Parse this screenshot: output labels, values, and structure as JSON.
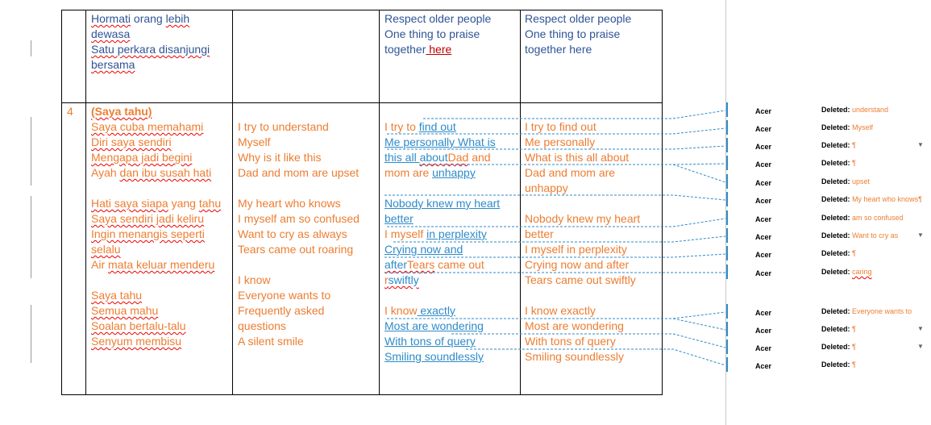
{
  "table": {
    "row1": {
      "col1": [],
      "col2": [
        [
          {
            "t": "Hormati",
            "k": "b sp"
          },
          {
            "t": " orang ",
            "k": "b"
          },
          {
            "t": "lebih",
            "k": "b sp"
          }
        ],
        [
          {
            "t": "dewasa",
            "k": "b sp"
          }
        ],
        [
          {
            "t": "Satu perkara disanjungi",
            "k": "b sp"
          }
        ],
        [
          {
            "t": "bersama",
            "k": "b sp"
          }
        ]
      ],
      "col3": [],
      "col4": [
        [
          {
            "t": "Respect older people",
            "k": "b"
          }
        ],
        [
          {
            "t": "One thing to praise",
            "k": "b"
          }
        ],
        [
          {
            "t": "together",
            "k": "b"
          },
          {
            "t": " here",
            "k": "insred"
          }
        ]
      ],
      "col5": [
        [
          {
            "t": "Respect older people",
            "k": "b"
          }
        ],
        [
          {
            "t": "One thing to praise",
            "k": "b"
          }
        ],
        [
          {
            "t": "together here",
            "k": "b"
          }
        ]
      ]
    },
    "row2": {
      "col1": [
        [
          {
            "t": "4",
            "k": "o"
          }
        ]
      ],
      "col2": [
        [
          {
            "t": "(Saya tahu)",
            "k": "o bold sp"
          }
        ],
        [
          {
            "t": "Saya cuba memahami",
            "k": "o sp"
          }
        ],
        [
          {
            "t": "Diri saya sendiri",
            "k": "o sp"
          }
        ],
        [
          {
            "t": "Mengapa jadi begini",
            "k": "o sp"
          }
        ],
        [
          {
            "t": "Ayah ",
            "k": "o"
          },
          {
            "t": "dan ibu susah hati",
            "k": "o sp"
          }
        ],
        [],
        [
          {
            "t": "Hati saya siapa",
            "k": "o sp"
          },
          {
            "t": " yang ",
            "k": "o"
          },
          {
            "t": "tahu",
            "k": "o sp"
          }
        ],
        [
          {
            "t": "Saya sendiri jadi keliru",
            "k": "o sp"
          }
        ],
        [
          {
            "t": "Ingin menangis seperti",
            "k": "o sp"
          }
        ],
        [
          {
            "t": "selalu",
            "k": "o sp"
          }
        ],
        [
          {
            "t": "Air ",
            "k": "o"
          },
          {
            "t": "mata keluar menderu",
            "k": "o sp"
          }
        ],
        [],
        [
          {
            "t": "Saya tahu",
            "k": "o sp"
          }
        ],
        [
          {
            "t": "Semua mahu",
            "k": "o sp"
          }
        ],
        [
          {
            "t": "Soalan bertalu-talu",
            "k": "o sp"
          }
        ],
        [
          {
            "t": "Senyum membisu",
            "k": "o sp"
          }
        ]
      ],
      "col3": [
        [],
        [
          {
            "t": "I try to understand",
            "k": "o"
          }
        ],
        [
          {
            "t": "Myself",
            "k": "o"
          }
        ],
        [
          {
            "t": "Why is it like this",
            "k": "o"
          }
        ],
        [
          {
            "t": "Dad and mom are upset",
            "k": "o"
          }
        ],
        [],
        [
          {
            "t": "My heart who knows",
            "k": "o"
          }
        ],
        [
          {
            "t": "I myself am so confused",
            "k": "o"
          }
        ],
        [
          {
            "t": "Want to cry as always",
            "k": "o"
          }
        ],
        [
          {
            "t": "Tears came out roaring",
            "k": "o"
          }
        ],
        [],
        [
          {
            "t": "I know",
            "k": "o"
          }
        ],
        [
          {
            "t": "Everyone wants to",
            "k": "o"
          }
        ],
        [
          {
            "t": "Frequently asked",
            "k": "o"
          }
        ],
        [
          {
            "t": "questions",
            "k": "o"
          }
        ],
        [
          {
            "t": "A silent smile",
            "k": "o"
          }
        ]
      ],
      "col4": [
        [],
        [
          {
            "t": "I try to ",
            "k": "o"
          },
          {
            "t": " find out",
            "k": "ins"
          }
        ],
        [
          {
            "t": " Me personally What is",
            "k": "ins"
          }
        ],
        [
          {
            "t": "this all ",
            "k": "ins"
          },
          {
            "t": "about",
            "k": "ins sp"
          },
          {
            "t": "Dad",
            "k": "o sp"
          },
          {
            "t": " and",
            "k": "o"
          }
        ],
        [
          {
            "t": "mom are ",
            "k": "o"
          },
          {
            "t": " unhappy",
            "k": "ins"
          }
        ],
        [],
        [
          {
            "t": "Nobody knew my heart",
            "k": "ins"
          }
        ],
        [
          {
            "t": "better",
            "k": "ins"
          }
        ],
        [
          {
            "t": "I myself ",
            "k": "o"
          },
          {
            "t": " in perplexity",
            "k": "ins"
          }
        ],
        [
          {
            "t": " Crying now and",
            "k": "ins"
          }
        ],
        [
          {
            "t": "after",
            "k": "ins sp"
          },
          {
            "t": "Tears",
            "k": "o sp"
          },
          {
            "t": " came out",
            "k": "o"
          }
        ],
        [
          {
            "t": "r",
            "k": "o sp"
          },
          {
            "t": "swiftly",
            "k": "ins sp"
          }
        ],
        [],
        [
          {
            "t": "I know",
            "k": "o"
          },
          {
            "t": " exactly",
            "k": "ins"
          }
        ],
        [
          {
            "t": " Most are wondering",
            "k": "ins"
          }
        ],
        [
          {
            "t": "With tons of query",
            "k": "ins"
          }
        ],
        [
          {
            "t": "Smiling soundlessly",
            "k": "ins"
          }
        ]
      ],
      "col5": [
        [],
        [
          {
            "t": "I try to find out",
            "k": "o"
          }
        ],
        [
          {
            "t": "Me personally",
            "k": "o"
          }
        ],
        [
          {
            "t": "What is this all about",
            "k": "o"
          }
        ],
        [
          {
            "t": "Dad and mom are",
            "k": "o"
          }
        ],
        [
          {
            "t": "unhappy",
            "k": "o"
          }
        ],
        [],
        [
          {
            "t": "Nobody knew my heart",
            "k": "o"
          }
        ],
        [
          {
            "t": "better",
            "k": "o"
          }
        ],
        [
          {
            "t": "I myself in perplexity",
            "k": "o"
          }
        ],
        [
          {
            "t": "Crying now and after",
            "k": "o"
          }
        ],
        [
          {
            "t": "Tears came out swiftly",
            "k": "o"
          }
        ],
        [],
        [
          {
            "t": "I know exactly",
            "k": "o"
          }
        ],
        [
          {
            "t": "Most are wondering",
            "k": "o"
          }
        ],
        [
          {
            "t": "With tons of query",
            "k": "o"
          }
        ],
        [
          {
            "t": "Smiling soundlessly",
            "k": "o"
          }
        ]
      ]
    }
  },
  "comments": [
    {
      "author": "Acer",
      "label": "Deleted:",
      "value": "understand",
      "menu": false
    },
    {
      "author": "Acer",
      "label": "Deleted:",
      "value": "Myself",
      "menu": false
    },
    {
      "author": "Acer",
      "label": "Deleted:",
      "value": "¶",
      "menu": true
    },
    {
      "author": "Acer",
      "label": "Deleted:",
      "value": "¶",
      "menu": false
    },
    {
      "author": "Acer",
      "label": "Deleted:",
      "value": "upset",
      "menu": false
    },
    {
      "author": "Acer",
      "label": "Deleted:",
      "value": "My heart who knows¶",
      "menu": false
    },
    {
      "author": "Acer",
      "label": "Deleted:",
      "value": "am so confused",
      "menu": false
    },
    {
      "author": "Acer",
      "label": "Deleted:",
      "value": "Want to cry as",
      "menu": true
    },
    {
      "author": "Acer",
      "label": "Deleted:",
      "value": "¶",
      "menu": false
    },
    {
      "author": "Acer",
      "label": "Deleted:",
      "value": "caring",
      "menu": false
    },
    {
      "author": "Acer",
      "label": "Deleted:",
      "value": "Everyone wants to",
      "menu": false
    },
    {
      "author": "Acer",
      "label": "Deleted:",
      "value": "¶",
      "menu": true
    },
    {
      "author": "Acer",
      "label": "Deleted:",
      "value": "¶",
      "menu": true
    },
    {
      "author": "Acer",
      "label": "Deleted:",
      "value": "¶",
      "menu": false
    }
  ],
  "colors": {
    "orange": "#ED7D31",
    "inserted": "#2E8BC9",
    "original": "#2F5496"
  }
}
